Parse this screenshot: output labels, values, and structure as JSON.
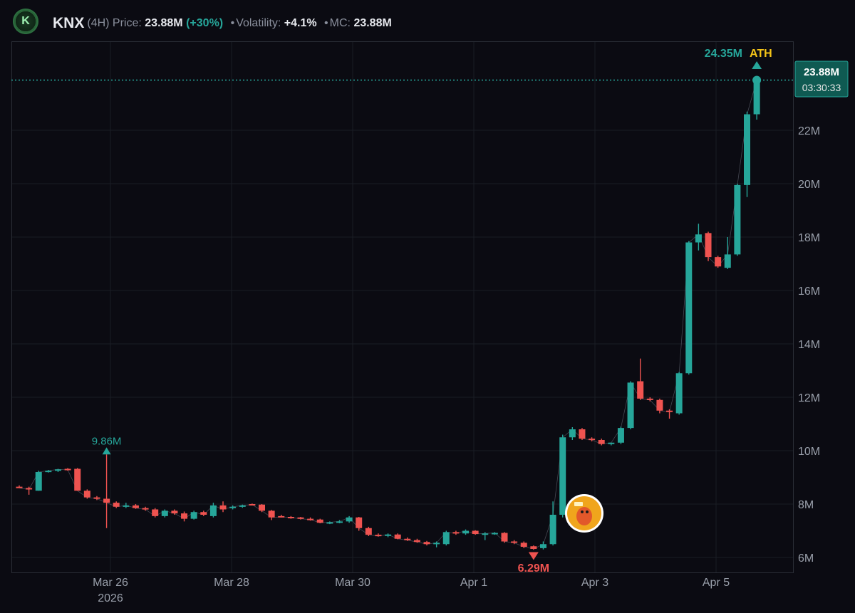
{
  "header": {
    "symbol": "KNX",
    "interval": "(4H)",
    "price_label": "Price:",
    "price": "23.88M",
    "change": "(+30%)",
    "volatility_label": "Volatility:",
    "volatility": "+4.1%",
    "mc_label": "MC:",
    "mc": "23.88M",
    "logo_icon": "coin-logo-icon"
  },
  "chart_data": {
    "type": "candlestick",
    "interval": "4H",
    "ylim": [
      5.6,
      25.6
    ],
    "y_ticks": [
      6,
      8,
      10,
      12,
      14,
      16,
      18,
      20,
      22
    ],
    "y_tick_labels": [
      "6M",
      "8M",
      "10M",
      "12M",
      "14M",
      "16M",
      "18M",
      "20M",
      "22M"
    ],
    "x_tick_labels": [
      "Mar 26",
      "Mar 28",
      "Mar 30",
      "Apr 1",
      "Apr 3",
      "Apr 5"
    ],
    "x_year_label": "2026",
    "x_tick_positions_days": [
      2,
      4,
      6,
      8,
      10,
      12
    ],
    "bullish_color": "#26a69a",
    "bearish_color": "#ef5350",
    "candles_ohlc": [
      [
        8.65,
        8.7,
        8.6,
        8.6
      ],
      [
        8.6,
        8.65,
        8.35,
        8.55
      ],
      [
        8.5,
        9.25,
        8.5,
        9.2
      ],
      [
        9.2,
        9.28,
        9.18,
        9.25
      ],
      [
        9.25,
        9.32,
        9.2,
        9.3
      ],
      [
        9.32,
        9.35,
        9.25,
        9.28
      ],
      [
        9.32,
        9.35,
        8.55,
        8.5
      ],
      [
        8.5,
        8.55,
        8.2,
        8.25
      ],
      [
        8.25,
        8.3,
        8.15,
        8.2
      ],
      [
        8.2,
        9.86,
        7.1,
        8.05
      ],
      [
        8.05,
        8.1,
        7.85,
        7.9
      ],
      [
        7.9,
        8.05,
        7.85,
        7.95
      ],
      [
        7.95,
        8.0,
        7.82,
        7.85
      ],
      [
        7.85,
        7.9,
        7.75,
        7.8
      ],
      [
        7.8,
        7.85,
        7.5,
        7.55
      ],
      [
        7.55,
        7.8,
        7.5,
        7.75
      ],
      [
        7.75,
        7.8,
        7.6,
        7.65
      ],
      [
        7.65,
        7.72,
        7.35,
        7.45
      ],
      [
        7.45,
        7.75,
        7.42,
        7.7
      ],
      [
        7.7,
        7.75,
        7.55,
        7.6
      ],
      [
        7.55,
        8.05,
        7.5,
        7.95
      ],
      [
        7.95,
        8.1,
        7.7,
        7.8
      ],
      [
        7.85,
        7.95,
        7.8,
        7.9
      ],
      [
        7.9,
        7.98,
        7.86,
        7.95
      ],
      [
        8.0,
        8.02,
        7.95,
        7.98
      ],
      [
        7.98,
        8.0,
        7.7,
        7.75
      ],
      [
        7.75,
        7.78,
        7.4,
        7.5
      ],
      [
        7.55,
        7.6,
        7.5,
        7.52
      ],
      [
        7.52,
        7.55,
        7.45,
        7.5
      ],
      [
        7.5,
        7.52,
        7.42,
        7.45
      ],
      [
        7.45,
        7.5,
        7.38,
        7.42
      ],
      [
        7.42,
        7.45,
        7.28,
        7.3
      ],
      [
        7.3,
        7.35,
        7.25,
        7.32
      ],
      [
        7.32,
        7.4,
        7.28,
        7.35
      ],
      [
        7.35,
        7.55,
        7.3,
        7.5
      ],
      [
        7.5,
        7.52,
        7.0,
        7.1
      ],
      [
        7.1,
        7.15,
        6.8,
        6.85
      ],
      [
        6.85,
        6.9,
        6.78,
        6.8
      ],
      [
        6.82,
        6.9,
        6.76,
        6.86
      ],
      [
        6.86,
        6.9,
        6.68,
        6.7
      ],
      [
        6.7,
        6.75,
        6.62,
        6.65
      ],
      [
        6.65,
        6.7,
        6.55,
        6.58
      ],
      [
        6.58,
        6.62,
        6.45,
        6.5
      ],
      [
        6.5,
        6.6,
        6.38,
        6.55
      ],
      [
        6.5,
        7.0,
        6.45,
        6.95
      ],
      [
        6.95,
        7.0,
        6.85,
        6.9
      ],
      [
        6.9,
        7.05,
        6.85,
        7.0
      ],
      [
        7.0,
        7.02,
        6.85,
        6.88
      ],
      [
        6.88,
        6.95,
        6.65,
        6.9
      ],
      [
        6.9,
        6.95,
        6.85,
        6.92
      ],
      [
        6.92,
        6.95,
        6.55,
        6.6
      ],
      [
        6.6,
        6.65,
        6.5,
        6.55
      ],
      [
        6.55,
        6.6,
        6.35,
        6.4
      ],
      [
        6.42,
        6.45,
        6.29,
        6.32
      ],
      [
        6.35,
        6.6,
        6.3,
        6.5
      ],
      [
        6.5,
        8.1,
        6.45,
        7.6
      ],
      [
        7.6,
        10.6,
        7.5,
        10.5
      ],
      [
        10.5,
        10.88,
        10.4,
        10.8
      ],
      [
        10.8,
        10.85,
        10.4,
        10.45
      ],
      [
        10.45,
        10.5,
        10.35,
        10.4
      ],
      [
        10.4,
        10.45,
        10.2,
        10.25
      ],
      [
        10.25,
        10.3,
        10.2,
        10.3
      ],
      [
        10.3,
        10.9,
        10.25,
        10.85
      ],
      [
        10.85,
        12.6,
        10.8,
        12.55
      ],
      [
        12.6,
        13.45,
        11.9,
        11.95
      ],
      [
        11.95,
        12.0,
        11.85,
        11.9
      ],
      [
        11.9,
        11.95,
        11.4,
        11.5
      ],
      [
        11.5,
        11.55,
        11.2,
        11.45
      ],
      [
        11.4,
        12.95,
        11.35,
        12.9
      ],
      [
        12.9,
        17.85,
        12.85,
        17.8
      ],
      [
        17.8,
        18.5,
        17.5,
        18.1
      ],
      [
        18.15,
        18.2,
        17.1,
        17.25
      ],
      [
        17.25,
        17.3,
        16.85,
        16.9
      ],
      [
        16.85,
        18.0,
        16.8,
        17.35
      ],
      [
        17.35,
        20.0,
        17.3,
        19.95
      ],
      [
        19.95,
        22.7,
        19.5,
        22.6
      ],
      [
        22.6,
        23.95,
        22.4,
        23.88
      ]
    ],
    "annotations": {
      "period_high_label": "9.86M",
      "low_label": "6.29M",
      "ath_value": "24.35M",
      "ath_label": "ATH"
    },
    "current_price": 23.88,
    "current_price_label": "23.88M",
    "countdown": "03:30:33",
    "event_marker_icon": "your-chart-avatar-icon"
  }
}
